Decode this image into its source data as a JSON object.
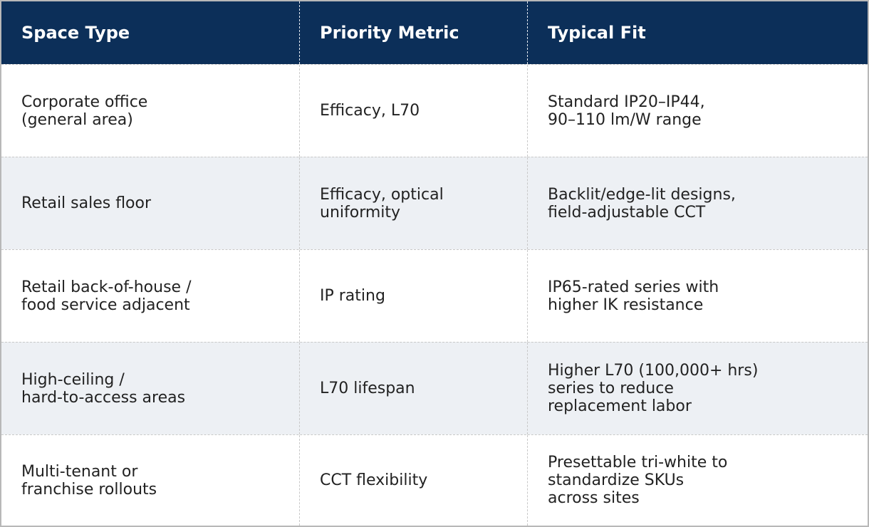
{
  "table": {
    "headers": [
      "Space Type",
      "Priority Metric",
      "Typical Fit"
    ],
    "rows": [
      {
        "space_type": [
          "Corporate office",
          "(general area)"
        ],
        "priority_metric": [
          "Efficacy, L70"
        ],
        "typical_fit": [
          "Standard IP20–IP44,",
          "90–110 lm/W range"
        ]
      },
      {
        "space_type": [
          "Retail sales floor"
        ],
        "priority_metric": [
          "Efficacy, optical",
          "uniformity"
        ],
        "typical_fit": [
          "Backlit/edge-lit designs,",
          "field-adjustable CCT"
        ]
      },
      {
        "space_type": [
          "Retail back-of-house /",
          "food service adjacent"
        ],
        "priority_metric": [
          "IP rating"
        ],
        "typical_fit": [
          "IP65-rated series with",
          "higher IK resistance"
        ]
      },
      {
        "space_type": [
          "High-ceiling /",
          "hard-to-access areas"
        ],
        "priority_metric": [
          "L70 lifespan"
        ],
        "typical_fit": [
          "Higher L70 (100,000+ hrs)",
          "series to reduce",
          "replacement labor"
        ]
      },
      {
        "space_type": [
          "Multi-tenant or",
          "franchise rollouts"
        ],
        "priority_metric": [
          "CCT flexibility"
        ],
        "typical_fit": [
          "Presettable tri-white to",
          "standardize SKUs",
          "across sites"
        ]
      }
    ]
  },
  "colors": {
    "header_background": "#0c2f59",
    "header_text": "#ffffff",
    "alt_row_background": "#edf0f4",
    "body_text": "#222222",
    "divider": "#c8c8c8"
  }
}
